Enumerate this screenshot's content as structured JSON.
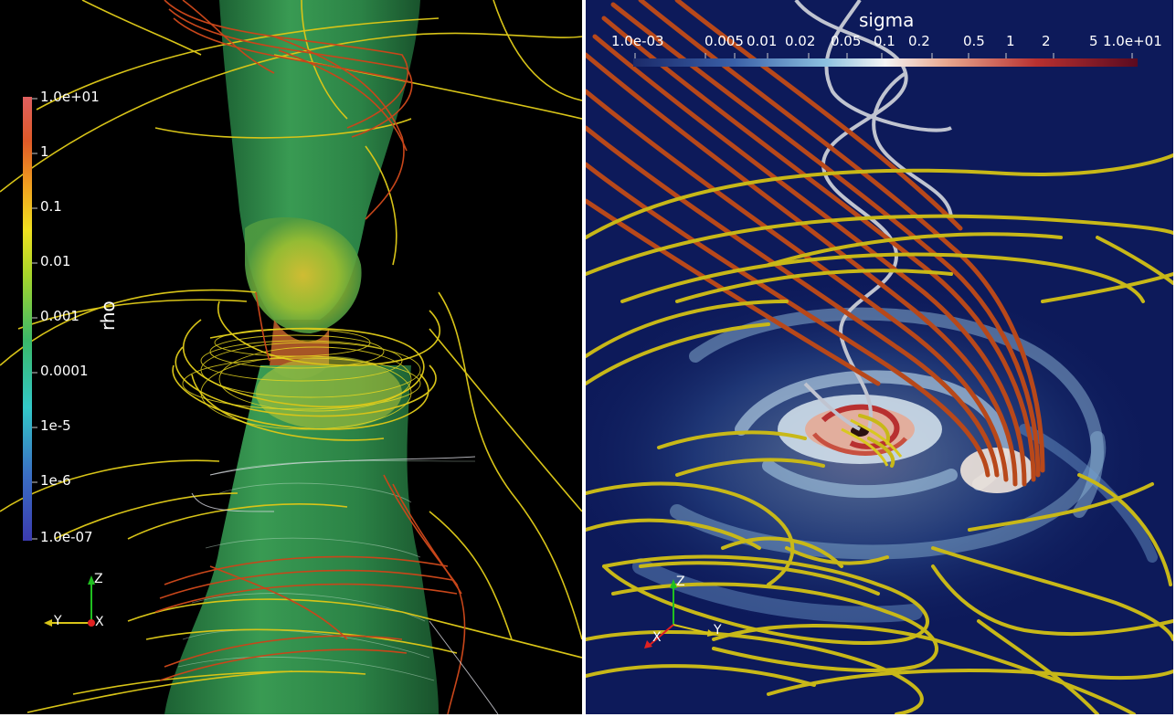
{
  "left_view": {
    "colorbar": {
      "title": "rho",
      "tick_labels": [
        "1.0e+01",
        "1",
        "0.1",
        "0.01",
        "0.001",
        "0.0001",
        "1e-5",
        "1e-6",
        "1.0e-07"
      ]
    },
    "axes": {
      "z": "Z",
      "y": "Y",
      "x": "X"
    }
  },
  "right_view": {
    "colorbar": {
      "title": "sigma",
      "tick_labels": [
        "1.0e-03",
        "0.005",
        "0.01",
        "0.02",
        "0.05",
        "0.1",
        "0.2",
        "0.5",
        "1",
        "2",
        "5",
        "1.0e+01"
      ]
    },
    "axes": {
      "z": "Z",
      "y": "Y",
      "x": "X"
    }
  },
  "colors": {
    "left_background": "#000000",
    "right_background": "#0d1a5a",
    "field_line_yellow": "#d8c418",
    "field_line_orange": "#c8461a",
    "field_line_white": "#d0d0d8",
    "isosurface_green": "#2f9a52"
  }
}
